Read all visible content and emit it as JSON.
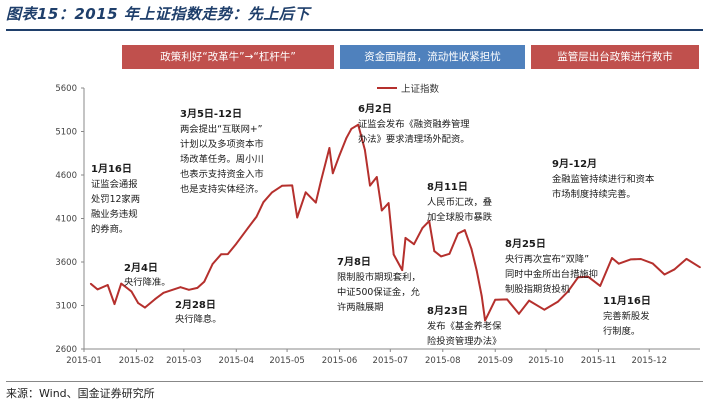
{
  "figure": {
    "title": "图表15：2015 年上证指数走势：先上后下",
    "source": "来源：Wind、国金证券研究所"
  },
  "phases": [
    {
      "label": "政策利好“改革牛”→“杠杆牛”",
      "color": "#c0504d"
    },
    {
      "label": "资金面崩盘，流动性收紧担忧",
      "color": "#4f81bd"
    },
    {
      "label": "监管层出台政策进行救市",
      "color": "#c0504d"
    }
  ],
  "chart_data": {
    "type": "line",
    "title": "",
    "xlabel": "",
    "ylabel": "",
    "ylim": [
      2600,
      5600
    ],
    "yticks": [
      2600,
      3100,
      3600,
      4100,
      4600,
      5100,
      5600
    ],
    "xticks": [
      "2015-01",
      "2015-02",
      "2015-03",
      "2015-04",
      "2015-05",
      "2015-06",
      "2015-07",
      "2015-08",
      "2015-09",
      "2015-10",
      "2015-11",
      "2015-12"
    ],
    "grid": false,
    "legend_position": "top-center",
    "series": [
      {
        "name": "上证指数",
        "color": "#b5302d",
        "x": [
          "2015-01-05",
          "2015-01-09",
          "2015-01-15",
          "2015-01-19",
          "2015-01-23",
          "2015-01-29",
          "2015-02-02",
          "2015-02-06",
          "2015-02-12",
          "2015-02-17",
          "2015-02-27",
          "2015-03-04",
          "2015-03-09",
          "2015-03-13",
          "2015-03-18",
          "2015-03-23",
          "2015-03-27",
          "2015-04-01",
          "2015-04-08",
          "2015-04-13",
          "2015-04-17",
          "2015-04-22",
          "2015-04-28",
          "2015-05-04",
          "2015-05-07",
          "2015-05-12",
          "2015-05-18",
          "2015-05-21",
          "2015-05-26",
          "2015-05-28",
          "2015-06-01",
          "2015-06-05",
          "2015-06-08",
          "2015-06-12",
          "2015-06-16",
          "2015-06-19",
          "2015-06-23",
          "2015-06-26",
          "2015-06-30",
          "2015-07-03",
          "2015-07-08",
          "2015-07-10",
          "2015-07-15",
          "2015-07-20",
          "2015-07-24",
          "2015-07-27",
          "2015-07-31",
          "2015-08-05",
          "2015-08-10",
          "2015-08-14",
          "2015-08-18",
          "2015-08-21",
          "2015-08-24",
          "2015-08-26",
          "2015-09-01",
          "2015-09-08",
          "2015-09-15",
          "2015-09-21",
          "2015-09-30",
          "2015-10-08",
          "2015-10-14",
          "2015-10-20",
          "2015-10-26",
          "2015-11-02",
          "2015-11-09",
          "2015-11-13",
          "2015-11-20",
          "2015-11-26",
          "2015-12-03",
          "2015-12-10",
          "2015-12-16",
          "2015-12-23",
          "2015-12-31"
        ],
        "values": [
          3350,
          3285,
          3336,
          3116,
          3352,
          3262,
          3128,
          3076,
          3173,
          3246,
          3310,
          3280,
          3302,
          3372,
          3577,
          3688,
          3691,
          3810,
          3994,
          4122,
          4287,
          4398,
          4476,
          4480,
          4112,
          4401,
          4283,
          4529,
          4910,
          4620,
          4828,
          5023,
          5131,
          5178,
          4887,
          4478,
          4577,
          4192,
          4277,
          3686,
          3507,
          3877,
          3805,
          3992,
          4070,
          3725,
          3664,
          3694,
          3928,
          3965,
          3748,
          3507,
          3210,
          2927,
          3166,
          3170,
          3005,
          3156,
          3052,
          3143,
          3262,
          3425,
          3430,
          3325,
          3646,
          3580,
          3630,
          3635,
          3584,
          3456,
          3516,
          3636,
          3539
        ]
      }
    ]
  },
  "annotations": [
    {
      "date": "1月16日",
      "lines": [
        "证监会通报",
        "处罚12家两",
        "融业务违规",
        "的券商。"
      ]
    },
    {
      "date": "2月4日",
      "lines": [
        "央行降准。"
      ]
    },
    {
      "date": "2月28日",
      "lines": [
        "央行降息。"
      ]
    },
    {
      "date": "3月5日-12日",
      "lines": [
        "两会提出“互联网+”",
        "计划以及多项资本市",
        "场改革任务。周小川",
        "也表示支持资金入市",
        "也是支持实体经济。"
      ]
    },
    {
      "date": "6月2日",
      "lines": [
        "证监会发布《融资融券管理",
        "办法》要求清理场外配资。"
      ]
    },
    {
      "date": "7月8日",
      "lines": [
        "限制股市期现套利，",
        "中证500保证金，允",
        "许两融展期"
      ]
    },
    {
      "date": "8月11日",
      "lines": [
        "人民币汇改，叠",
        "加全球股市暴跌"
      ]
    },
    {
      "date": "8月25日",
      "lines": [
        "央行再次宣布“双降”",
        "同时中金所出台措施抑",
        "制股指期货投机"
      ]
    },
    {
      "date": "8月23日",
      "lines": [
        "发布《基金养老保",
        "险投资管理办法》"
      ]
    },
    {
      "date": "9月-12月",
      "lines": [
        "金融监管持续进行和资本",
        "市场制度持续完善。"
      ]
    },
    {
      "date": "11月16日",
      "lines": [
        "完善新股发",
        "行制度。"
      ]
    }
  ]
}
